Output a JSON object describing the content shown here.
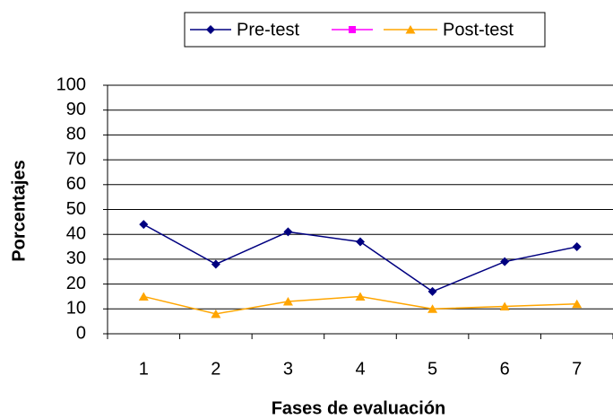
{
  "chart_data": {
    "type": "line",
    "x_label": "Fases de evaluación",
    "y_label": "Porcentajes",
    "categories": [
      "1",
      "2",
      "3",
      "4",
      "5",
      "6",
      "7"
    ],
    "series": [
      {
        "name": "Pre-test",
        "color": "#000080",
        "marker": "diamond",
        "values": [
          44,
          28,
          41,
          37,
          17,
          29,
          35
        ]
      },
      {
        "color": "#ff00ff",
        "marker": "square",
        "values": [
          null,
          null,
          null,
          null,
          null,
          null,
          null
        ]
      },
      {
        "name": "Post-test",
        "color": "#ffa500",
        "marker": "triangle",
        "values": [
          15,
          8,
          13,
          15,
          10,
          11,
          12
        ]
      }
    ],
    "ylim": [
      0,
      100
    ],
    "yticks": [
      0,
      10,
      20,
      30,
      40,
      50,
      60,
      70,
      80,
      90,
      100
    ],
    "grid": true,
    "legend": "top"
  }
}
